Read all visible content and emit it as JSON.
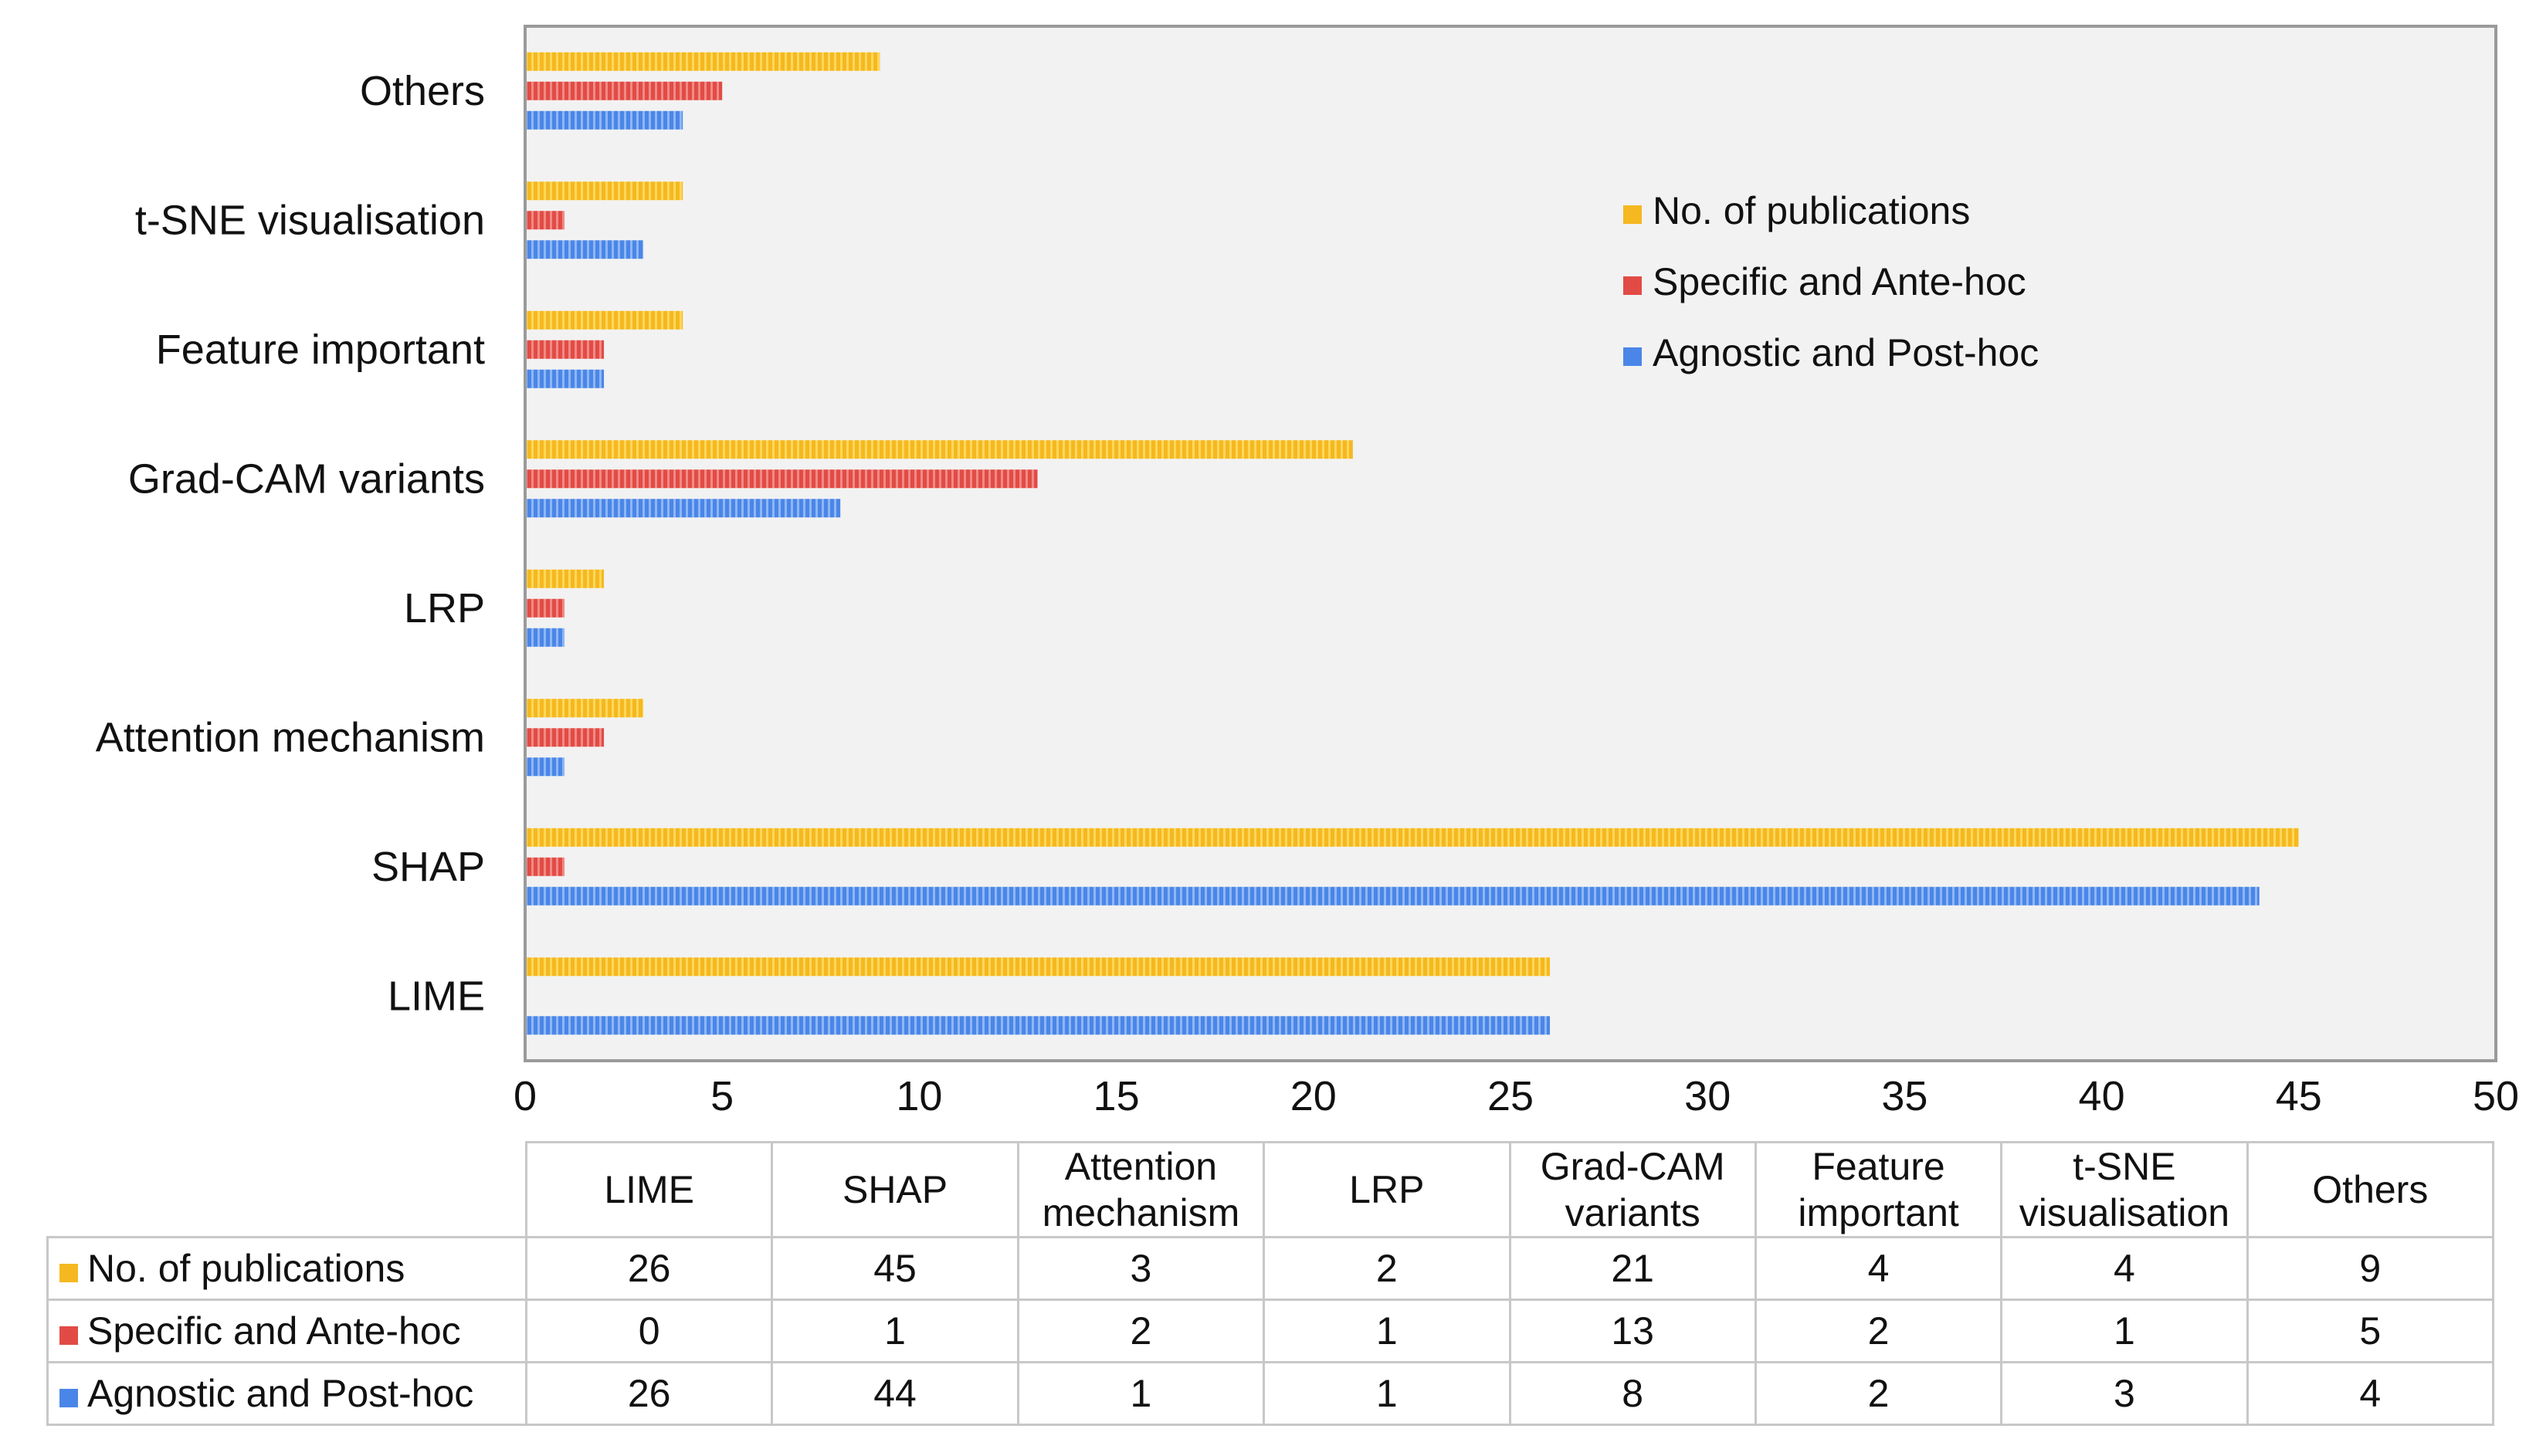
{
  "chart_data": {
    "type": "bar",
    "orientation": "horizontal",
    "categories": [
      "LIME",
      "SHAP",
      "Attention mechanism",
      "LRP",
      "Grad-CAM variants",
      "Feature important",
      "t-SNE visualisation",
      "Others"
    ],
    "table_headers": [
      [
        "LIME"
      ],
      [
        "SHAP"
      ],
      [
        "Attention",
        "mechanism"
      ],
      [
        "LRP"
      ],
      [
        "Grad-CAM",
        "variants"
      ],
      [
        "Feature",
        "important"
      ],
      [
        "t-SNE",
        "visualisation"
      ],
      [
        "Others"
      ]
    ],
    "series": [
      {
        "name": "No. of publications",
        "color": "#F5B820",
        "values": [
          26,
          45,
          3,
          2,
          21,
          4,
          4,
          9
        ]
      },
      {
        "name": "Specific and Ante-hoc",
        "color": "#E24B45",
        "values": [
          0,
          1,
          2,
          1,
          13,
          2,
          1,
          5
        ]
      },
      {
        "name": "Agnostic and Post-hoc",
        "color": "#4A86E8",
        "values": [
          26,
          44,
          1,
          1,
          8,
          2,
          3,
          4
        ]
      }
    ],
    "xlim": [
      0,
      50
    ],
    "xticks": [
      0,
      5,
      10,
      15,
      20,
      25,
      30,
      35,
      40,
      45,
      50
    ],
    "title": "",
    "xlabel": "",
    "ylabel": "",
    "grid": false,
    "legend": "right",
    "data_table": true,
    "plot_background": "#F2F2F2"
  }
}
